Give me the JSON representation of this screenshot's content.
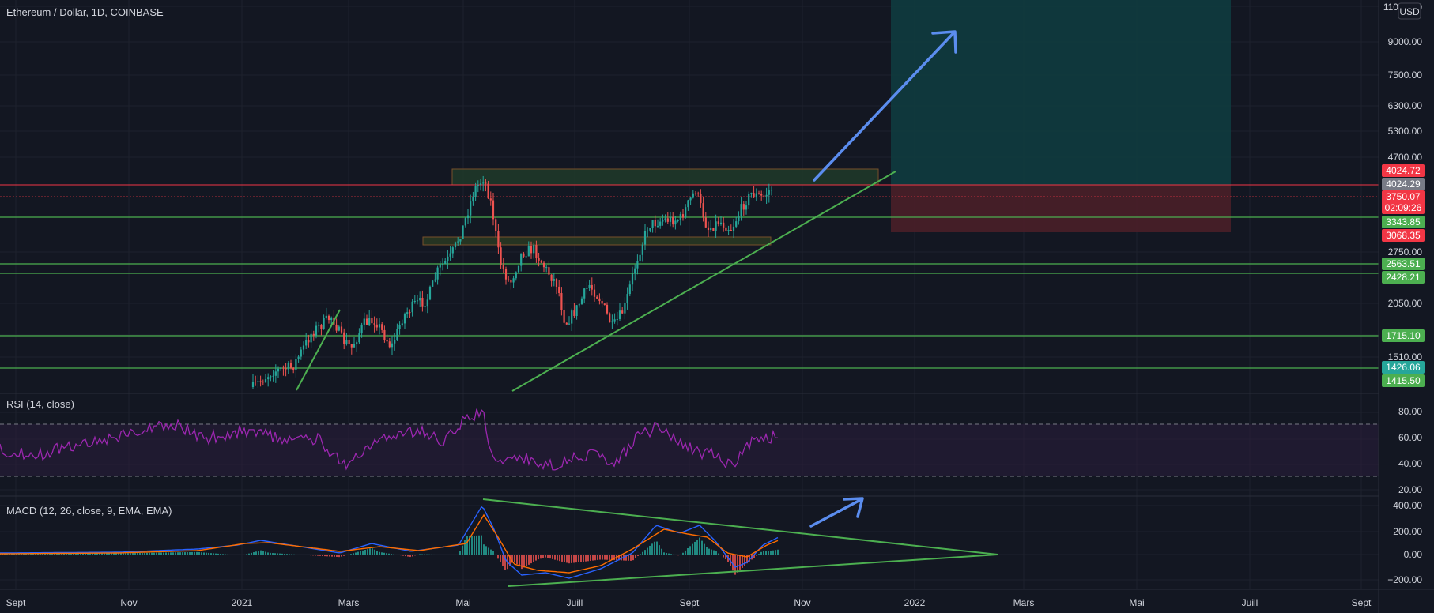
{
  "header": {
    "symbol_title": "Ethereum / Dollar, 1D, COINBASE",
    "currency_button": "USD"
  },
  "price_axis": {
    "ticks": [
      "11000.00",
      "9000.00",
      "7500.00",
      "6300.00",
      "5300.00",
      "4700.00",
      "2750.00",
      "2050.00",
      "1750.00",
      "1510.00"
    ],
    "labels": [
      {
        "text": "4024.72",
        "color": "#f23645"
      },
      {
        "text": "4024.29",
        "color": "#787b86"
      },
      {
        "text": "3750.07",
        "sub": "02:09:26",
        "color": "#f23645"
      },
      {
        "text": "3343.85",
        "color": "#4caf50"
      },
      {
        "text": "3068.35",
        "color": "#f23645"
      },
      {
        "text": "2563.51",
        "color": "#4caf50"
      },
      {
        "text": "2428.21",
        "color": "#4caf50"
      },
      {
        "text": "1715.10",
        "color": "#4caf50"
      },
      {
        "text": "1426.06",
        "color": "#26a69a"
      },
      {
        "text": "1415.50",
        "color": "#4caf50"
      }
    ]
  },
  "rsi_pane": {
    "title": "RSI (14, close)",
    "ticks": [
      "80.00",
      "60.00",
      "40.00",
      "20.00"
    ],
    "line_color": "#9c27b0"
  },
  "macd_pane": {
    "title": "MACD (12, 26, close, 9, EMA, EMA)",
    "ticks": [
      "400.00",
      "200.00",
      "0.00",
      "−200.00"
    ],
    "macd_color": "#2962ff",
    "signal_color": "#ff6d00"
  },
  "time_axis": {
    "labels": [
      "Sept",
      "Nov",
      "2021",
      "Mars",
      "Mai",
      "Juill",
      "Sept",
      "Nov",
      "2022",
      "Mars",
      "Mai",
      "Juill",
      "Sept"
    ]
  },
  "colors": {
    "background": "#131722",
    "candle_up": "#26a69a",
    "candle_down": "#ef5350",
    "support_line": "#4caf50",
    "resistance_line": "#f23645",
    "target_zone": "#0e3a3c",
    "stop_zone": "#4a1e26",
    "arrow": "#5b8def"
  }
}
